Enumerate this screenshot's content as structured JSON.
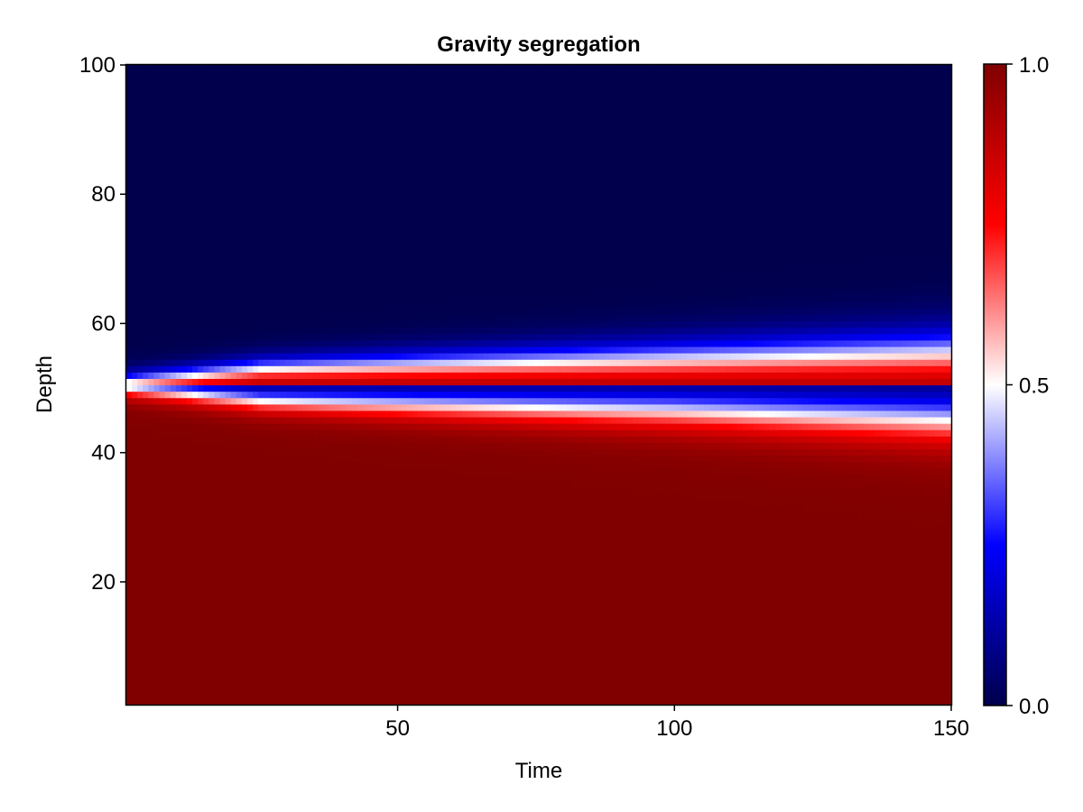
{
  "chart_data": {
    "type": "heatmap",
    "title": "Gravity segregation",
    "xlabel": "Time",
    "ylabel": "Depth",
    "xlim": [
      1,
      150
    ],
    "ylim": [
      1,
      100
    ],
    "n_time": 150,
    "n_depth": 100,
    "x_ticks": [
      50,
      100,
      150
    ],
    "y_ticks": [
      20,
      40,
      60,
      80,
      100
    ],
    "colorbar": {
      "range": [
        0.0,
        1.0
      ],
      "ticks": [
        0.0,
        0.5,
        1.0
      ],
      "tick_labels": [
        "0.0",
        "0.5",
        "1.0"
      ],
      "colormap": "seismic",
      "colors": [
        "#00004c",
        "#0000ff",
        "#ffffff",
        "#ff0000",
        "#800000"
      ]
    },
    "initial_interface_depth": 50.5,
    "lower_front_depth": [
      [
        1,
        50
      ],
      [
        25,
        48
      ],
      [
        50,
        47.5
      ],
      [
        100,
        46.5
      ],
      [
        150,
        45
      ]
    ],
    "upper_front_depth": [
      [
        1,
        51
      ],
      [
        25,
        53
      ],
      [
        50,
        53.5
      ],
      [
        100,
        54.5
      ],
      [
        150,
        55.5
      ]
    ],
    "notes_values": {
      "below_lower_front": 1.0,
      "above_upper_front": 0.0,
      "middle_band_top": 1.0,
      "middle_band_bottom": 0.0
    }
  }
}
